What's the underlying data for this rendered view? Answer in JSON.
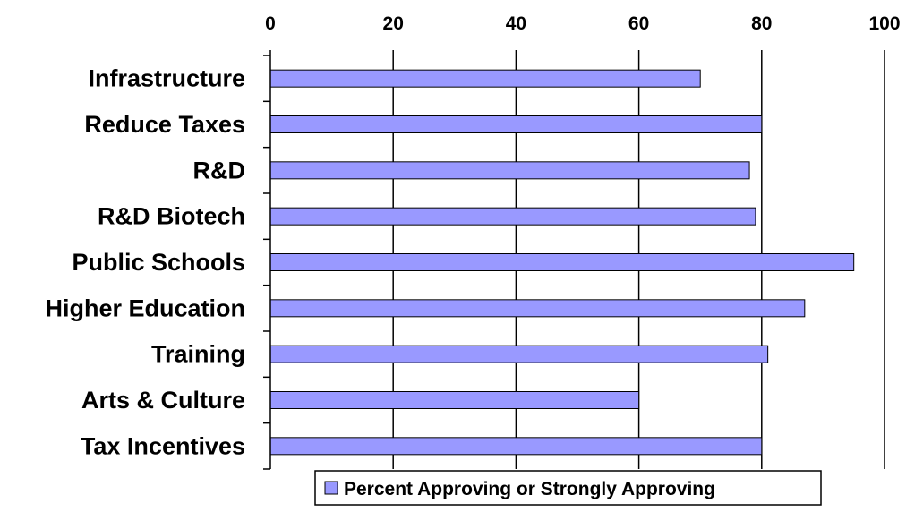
{
  "chart_data": {
    "type": "bar",
    "orientation": "horizontal",
    "categories": [
      "Infrastructure",
      "Reduce Taxes",
      "R&D",
      "R&D Biotech",
      "Public Schools",
      "Higher Education",
      "Training",
      "Arts & Culture",
      "Tax Incentives"
    ],
    "series": [
      {
        "name": "Percent Approving or Strongly Approving",
        "values": [
          70,
          80,
          78,
          79,
          95,
          87,
          81,
          60,
          80
        ]
      }
    ],
    "xlim": [
      0,
      100
    ],
    "x_ticks": [
      0,
      20,
      40,
      60,
      80,
      100
    ],
    "x_tick_labels": [
      "0",
      "20",
      "40",
      "60",
      "80",
      "100"
    ],
    "x_axis_position": "top",
    "grid": "vertical major gridlines",
    "legend_position": "bottom",
    "colors": {
      "bar_fill": "#9999ff",
      "bar_stroke": "#000000",
      "gridline": "#000000",
      "text": "#000000",
      "background": "#ffffff"
    }
  }
}
